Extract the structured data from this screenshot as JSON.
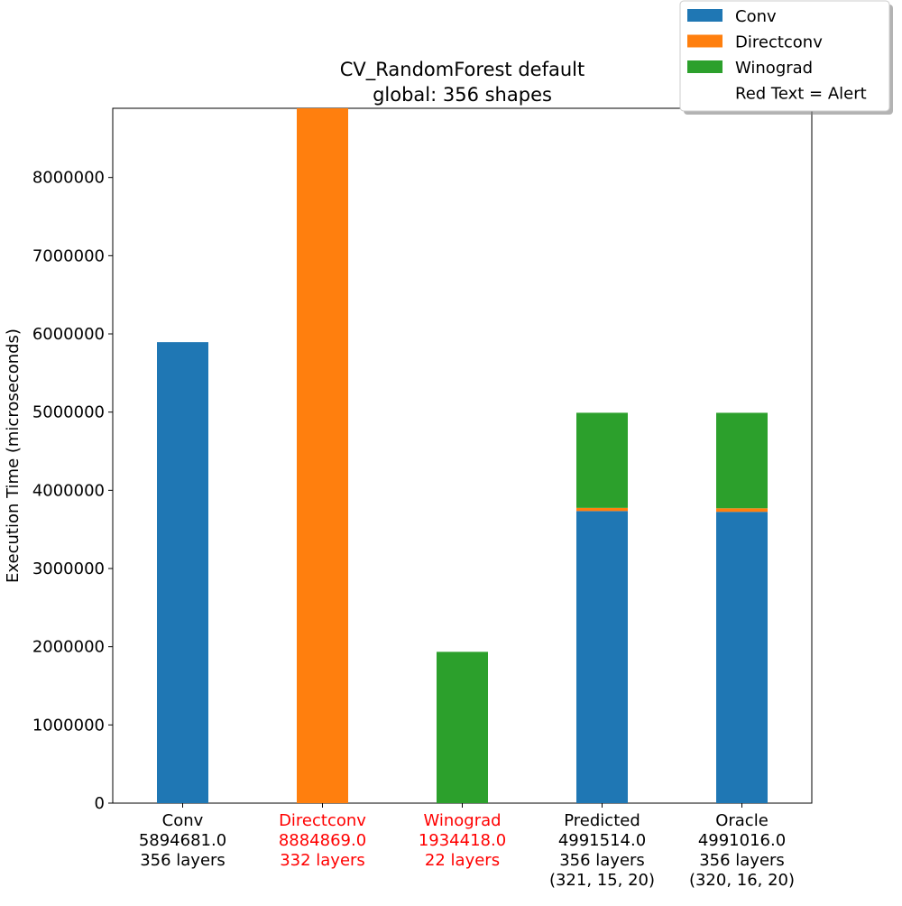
{
  "chart_data": {
    "type": "bar",
    "stacked": true,
    "title_lines": [
      "CV_RandomForest default",
      "global: 356 shapes"
    ],
    "ylabel": "Execution Time (microseconds)",
    "xlabel": "",
    "ylim": [
      0,
      8884869
    ],
    "y_ticks": [
      0,
      1000000,
      2000000,
      3000000,
      4000000,
      5000000,
      6000000,
      7000000,
      8000000
    ],
    "y_tick_labels": [
      "0",
      "1000000",
      "2000000",
      "3000000",
      "4000000",
      "5000000",
      "6000000",
      "7000000",
      "8000000"
    ],
    "grid": false,
    "legend_position": "top-right",
    "colors": {
      "alert": "#ff0000",
      "normal": "#000000"
    },
    "categories": [
      {
        "lines": [
          "Conv",
          "5894681.0",
          "356 layers"
        ],
        "alert": false
      },
      {
        "lines": [
          "Directconv",
          "8884869.0",
          "332 layers"
        ],
        "alert": true
      },
      {
        "lines": [
          "Winograd",
          "1934418.0",
          "22 layers"
        ],
        "alert": true
      },
      {
        "lines": [
          "Predicted",
          "4991514.0",
          "356 layers",
          "(321, 15, 20)"
        ],
        "alert": false
      },
      {
        "lines": [
          "Oracle",
          "4991016.0",
          "356 layers",
          "(320, 16, 20)"
        ],
        "alert": false
      }
    ],
    "series": [
      {
        "name": "Conv",
        "color": "#1f77b4",
        "values": [
          5894681,
          0,
          0,
          3735000,
          3725000
        ]
      },
      {
        "name": "Directconv",
        "color": "#ff7f0e",
        "values": [
          0,
          8884869,
          0,
          40000,
          45000
        ]
      },
      {
        "name": "Winograd",
        "color": "#2ca02c",
        "values": [
          0,
          0,
          1934418,
          1216514,
          1221016
        ]
      }
    ],
    "legend_note": "Red Text = Alert"
  }
}
